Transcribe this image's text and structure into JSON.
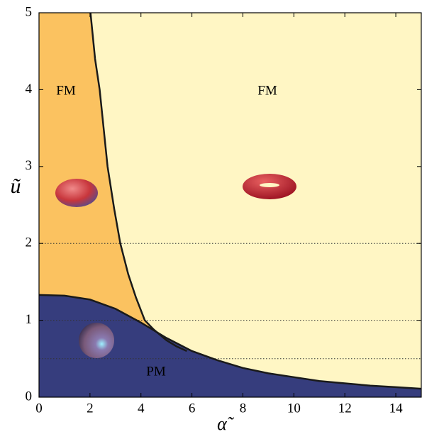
{
  "chart_data": {
    "type": "line",
    "xlabel": "α̃",
    "ylabel": "ũ",
    "xlim": [
      0,
      15
    ],
    "ylim": [
      0,
      5
    ],
    "xticks": [
      0,
      2,
      4,
      6,
      8,
      10,
      12,
      14
    ],
    "yticks": [
      0,
      1,
      2,
      3,
      4,
      5
    ],
    "background": "#fff6c4",
    "series": [
      {
        "color": "#1a1a1a",
        "fill": "#fbc260",
        "fill_side": "left",
        "x": [
          2.02,
          2.2,
          2.38,
          2.69,
          2.95,
          3.19,
          3.5,
          3.8,
          4.15,
          4.5,
          5.0,
          5.4,
          5.8
        ],
        "values": [
          5,
          4.4,
          4,
          3,
          2.45,
          2,
          1.6,
          1.3,
          1,
          0.88,
          0.74,
          0.66,
          0.6
        ]
      },
      {
        "color": "#1a1a1a",
        "fill": "#363d7d",
        "fill_side": "below",
        "x": [
          0,
          1,
          2,
          3,
          4,
          5,
          6,
          7,
          8,
          9,
          10,
          11,
          12,
          13,
          14,
          15
        ],
        "values": [
          1.33,
          1.32,
          1.27,
          1.15,
          0.97,
          0.77,
          0.6,
          0.48,
          0.38,
          0.31,
          0.26,
          0.21,
          0.18,
          0.15,
          0.13,
          0.11
        ]
      }
    ],
    "hlines": [
      2,
      1,
      0.5
    ],
    "annotations": [
      "FM",
      "FM",
      "PM"
    ]
  }
}
